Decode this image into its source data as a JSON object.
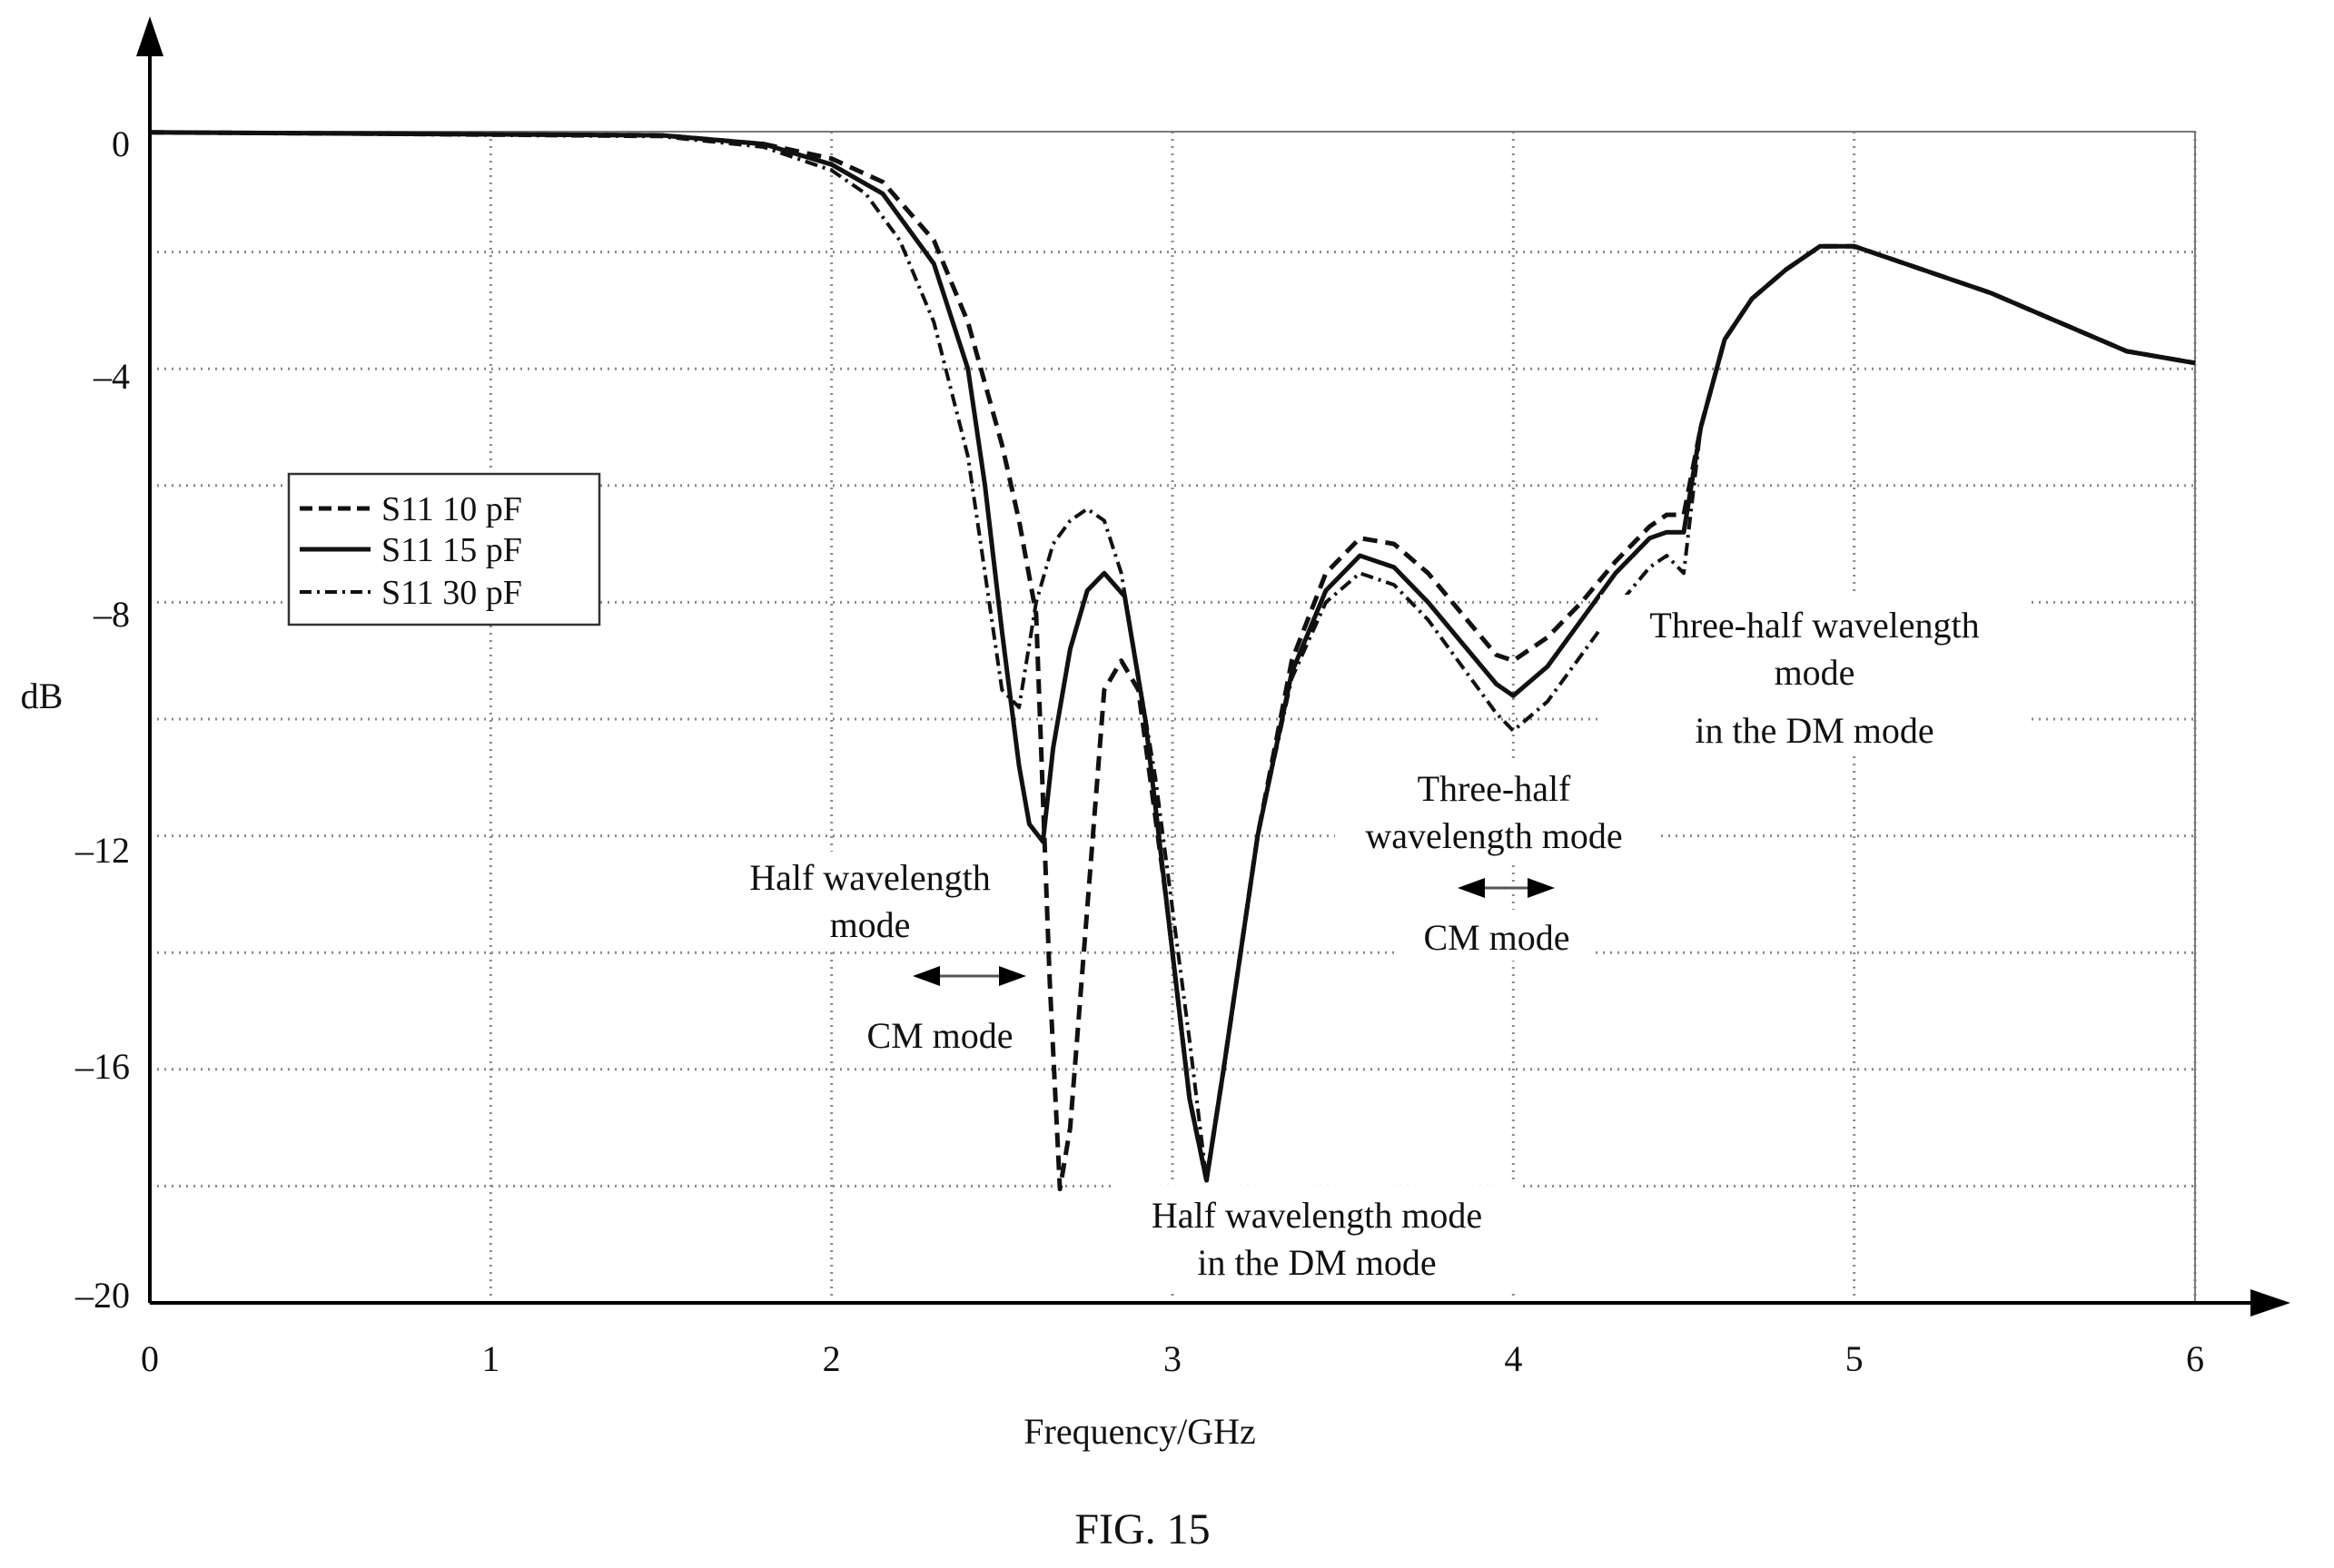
{
  "figure_caption": "FIG. 15",
  "chart_data": {
    "type": "line",
    "title": "",
    "xlabel": "Frequency/GHz",
    "ylabel": "dB",
    "xlim": [
      0,
      6
    ],
    "ylim": [
      -20,
      0.4
    ],
    "xticks": [
      0,
      1,
      2,
      3,
      4,
      5,
      6
    ],
    "yticks": [
      0,
      -4,
      -8,
      -12,
      -16,
      -20
    ],
    "xtick_labels": [
      "0",
      "1",
      "2",
      "3",
      "4",
      "5",
      "6"
    ],
    "ytick_labels": [
      "0",
      "–4",
      "–8",
      "–12",
      "–16",
      "–20"
    ],
    "grid": true,
    "grid_y_values": [
      0,
      -4,
      -8,
      -12,
      -16,
      -20
    ],
    "legend_position": "left",
    "series": [
      {
        "name": "S11 10 pF",
        "style": "dashed",
        "x": [
          0,
          1.5,
          1.8,
          2.0,
          2.15,
          2.3,
          2.4,
          2.5,
          2.55,
          2.6,
          2.64,
          2.67,
          2.7,
          2.74,
          2.8,
          2.85,
          2.9,
          2.98,
          3.05,
          3.1,
          3.15,
          3.25,
          3.35,
          3.45,
          3.55,
          3.65,
          3.75,
          3.85,
          3.95,
          4.0,
          4.1,
          4.2,
          4.3,
          4.4,
          4.45,
          4.5,
          4.55,
          4.62,
          4.7,
          4.8,
          4.9,
          5.0,
          5.2,
          5.4,
          5.6,
          5.8,
          6.0
        ],
        "y": [
          0.05,
          0.0,
          -0.15,
          -0.4,
          -0.8,
          -1.8,
          -3.2,
          -5.3,
          -6.6,
          -8.2,
          -14.5,
          -18.4,
          -17.0,
          -14.0,
          -9.5,
          -9.0,
          -9.5,
          -13.0,
          -16.5,
          -17.9,
          -16.0,
          -12.0,
          -9.0,
          -7.5,
          -6.9,
          -7.0,
          -7.5,
          -8.2,
          -8.9,
          -9.0,
          -8.6,
          -8.0,
          -7.3,
          -6.7,
          -6.5,
          -6.5,
          -5.0,
          -3.5,
          -2.8,
          -2.3,
          -1.9,
          -1.9,
          -2.3,
          -2.7,
          -3.2,
          -3.7,
          -3.9
        ]
      },
      {
        "name": "S11 15 pF",
        "style": "solid",
        "x": [
          0,
          1.5,
          1.8,
          2.0,
          2.15,
          2.3,
          2.4,
          2.45,
          2.5,
          2.55,
          2.58,
          2.62,
          2.65,
          2.7,
          2.75,
          2.8,
          2.86,
          2.92,
          2.98,
          3.05,
          3.1,
          3.15,
          3.25,
          3.35,
          3.45,
          3.55,
          3.65,
          3.75,
          3.85,
          3.95,
          4.0,
          4.1,
          4.2,
          4.3,
          4.4,
          4.45,
          4.5,
          4.55,
          4.62,
          4.7,
          4.8,
          4.9,
          5.0,
          5.2,
          5.4,
          5.6,
          5.8,
          6.0
        ],
        "y": [
          0.05,
          0.0,
          -0.15,
          -0.5,
          -1.0,
          -2.2,
          -4.0,
          -6.0,
          -8.5,
          -10.8,
          -11.8,
          -12.1,
          -10.5,
          -8.8,
          -7.8,
          -7.5,
          -7.9,
          -10.0,
          -13.0,
          -16.5,
          -17.9,
          -16.0,
          -12.0,
          -9.2,
          -7.8,
          -7.2,
          -7.4,
          -8.0,
          -8.7,
          -9.4,
          -9.6,
          -9.1,
          -8.3,
          -7.5,
          -6.9,
          -6.8,
          -6.8,
          -5.0,
          -3.5,
          -2.8,
          -2.3,
          -1.9,
          -1.9,
          -2.3,
          -2.7,
          -3.2,
          -3.7,
          -3.9
        ]
      },
      {
        "name": "S11 30 pF",
        "style": "dash-dot",
        "x": [
          0,
          1.5,
          1.8,
          2.0,
          2.1,
          2.2,
          2.3,
          2.4,
          2.45,
          2.5,
          2.55,
          2.6,
          2.65,
          2.7,
          2.75,
          2.8,
          2.85,
          2.95,
          3.05,
          3.1,
          3.15,
          3.25,
          3.35,
          3.45,
          3.55,
          3.65,
          3.75,
          3.85,
          3.95,
          4.0,
          4.1,
          4.2,
          4.3,
          4.4,
          4.45,
          4.5,
          4.55,
          4.62,
          4.7,
          4.8,
          4.9,
          5.0,
          5.2,
          5.4,
          5.6,
          5.8,
          6.0
        ],
        "y": [
          0.05,
          -0.02,
          -0.2,
          -0.6,
          -1.0,
          -1.8,
          -3.2,
          -5.5,
          -7.5,
          -9.5,
          -9.8,
          -8.0,
          -7.0,
          -6.6,
          -6.4,
          -6.6,
          -7.5,
          -11.0,
          -15.5,
          -17.9,
          -16.0,
          -12.0,
          -9.3,
          -8.0,
          -7.5,
          -7.7,
          -8.3,
          -9.1,
          -9.9,
          -10.2,
          -9.7,
          -8.9,
          -8.1,
          -7.4,
          -7.2,
          -7.5,
          -5.0,
          -3.5,
          -2.8,
          -2.3,
          -1.9,
          -1.9,
          -2.3,
          -2.7,
          -3.2,
          -3.7,
          -3.9
        ]
      }
    ],
    "annotations": [
      {
        "id": "ann-half-cm",
        "lines": [
          "Half wavelength",
          "mode"
        ],
        "arrow": [
          2.25,
          2.57
        ],
        "after": "CM mode"
      },
      {
        "id": "ann-half-dm",
        "lines": [
          "Half wavelength mode",
          "in the DM mode"
        ]
      },
      {
        "id": "ann-three-half-cm",
        "lines": [
          "Three-half",
          "wavelength mode"
        ],
        "arrow": [
          3.82,
          4.14
        ],
        "after": "CM mode"
      },
      {
        "id": "ann-three-half-dm",
        "lines": [
          "Three-half wavelength",
          "mode",
          "in the DM mode"
        ]
      }
    ]
  }
}
